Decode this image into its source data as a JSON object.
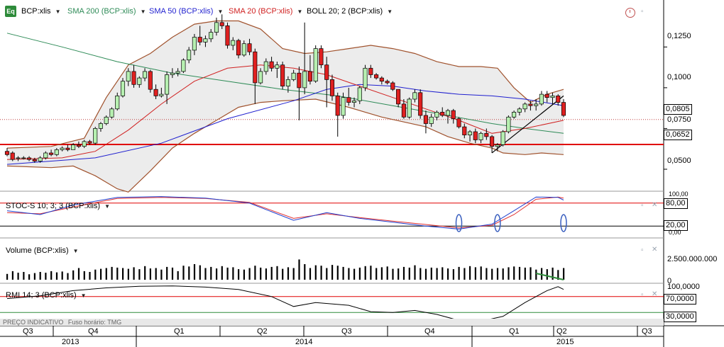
{
  "main_panel": {
    "symbol_label": "BCP:xlis",
    "icon_label": "Eq",
    "indicators": [
      {
        "label": "SMA 200 (BCP:xlis)",
        "color": "#2e8b57"
      },
      {
        "label": "SMA 50 (BCP:xlis)",
        "color": "#1f1fcf"
      },
      {
        "label": "SMA 20 (BCP:xlis)",
        "color": "#d02020"
      },
      {
        "label": "BOLL 20; 2 (BCP:xlis)",
        "color": "#000000"
      }
    ],
    "price_ticks": [
      "0,1250",
      "0,1000",
      "0,0750",
      "0,0500"
    ],
    "last_price": "0,0805",
    "support_price": "0,0652"
  },
  "stoch_panel": {
    "label": "STOC-S 10; 3; 3 (BCP:xlis)",
    "ticks": [
      "100,00",
      "0,00"
    ],
    "upper_box": "80,00",
    "lower_box": "20,00"
  },
  "volume_panel": {
    "label": "Volume (BCP:xlis)",
    "tick": "2.500.000.000",
    "zero": "0"
  },
  "rmi_panel": {
    "label": "RMI 14; 3 (BCP:xlis)",
    "top_tick": "100,0000",
    "upper_box": "70,0000",
    "lower_box": "30,0000"
  },
  "footer": {
    "price_note": "PREÇO INDICATIVO",
    "timezone": "Fuso horário: TMG"
  },
  "time_axis": {
    "quarters": [
      "Q3",
      "Q4",
      "Q1",
      "Q2",
      "Q3",
      "Q4",
      "Q1",
      "Q2",
      "Q3"
    ],
    "years": [
      "2013",
      "2014",
      "2015"
    ]
  },
  "chart_data": {
    "type": "candlestick",
    "candles_ohlc": [
      [
        0.061,
        0.063,
        0.058,
        0.059
      ],
      [
        0.06,
        0.061,
        0.055,
        0.056
      ],
      [
        0.057,
        0.058,
        0.055,
        0.057
      ],
      [
        0.057,
        0.058,
        0.056,
        0.057
      ],
      [
        0.057,
        0.058,
        0.055,
        0.056
      ],
      [
        0.056,
        0.057,
        0.054,
        0.055
      ],
      [
        0.055,
        0.058,
        0.054,
        0.057
      ],
      [
        0.057,
        0.061,
        0.056,
        0.06
      ],
      [
        0.06,
        0.062,
        0.058,
        0.059
      ],
      [
        0.059,
        0.063,
        0.058,
        0.062
      ],
      [
        0.062,
        0.064,
        0.061,
        0.063
      ],
      [
        0.063,
        0.065,
        0.061,
        0.062
      ],
      [
        0.062,
        0.066,
        0.062,
        0.065
      ],
      [
        0.065,
        0.067,
        0.063,
        0.064
      ],
      [
        0.064,
        0.068,
        0.063,
        0.067
      ],
      [
        0.067,
        0.068,
        0.065,
        0.066
      ],
      [
        0.066,
        0.076,
        0.065,
        0.075
      ],
      [
        0.075,
        0.079,
        0.073,
        0.078
      ],
      [
        0.078,
        0.083,
        0.077,
        0.082
      ],
      [
        0.082,
        0.088,
        0.081,
        0.087
      ],
      [
        0.087,
        0.097,
        0.086,
        0.095
      ],
      [
        0.095,
        0.106,
        0.094,
        0.104
      ],
      [
        0.104,
        0.112,
        0.101,
        0.11
      ],
      [
        0.11,
        0.114,
        0.1,
        0.102
      ],
      [
        0.102,
        0.107,
        0.1,
        0.106
      ],
      [
        0.106,
        0.112,
        0.104,
        0.11
      ],
      [
        0.11,
        0.111,
        0.097,
        0.099
      ],
      [
        0.099,
        0.102,
        0.093,
        0.095
      ],
      [
        0.095,
        0.1,
        0.094,
        0.096
      ],
      [
        0.096,
        0.11,
        0.09,
        0.108
      ],
      [
        0.108,
        0.112,
        0.106,
        0.109
      ],
      [
        0.109,
        0.112,
        0.107,
        0.11
      ],
      [
        0.11,
        0.118,
        0.109,
        0.117
      ],
      [
        0.117,
        0.125,
        0.115,
        0.123
      ],
      [
        0.123,
        0.133,
        0.12,
        0.131
      ],
      [
        0.131,
        0.138,
        0.126,
        0.128
      ],
      [
        0.128,
        0.132,
        0.125,
        0.13
      ],
      [
        0.13,
        0.136,
        0.128,
        0.134
      ],
      [
        0.134,
        0.143,
        0.132,
        0.14
      ],
      [
        0.14,
        0.145,
        0.136,
        0.138
      ],
      [
        0.138,
        0.14,
        0.124,
        0.126
      ],
      [
        0.126,
        0.131,
        0.123,
        0.129
      ],
      [
        0.129,
        0.13,
        0.118,
        0.12
      ],
      [
        0.12,
        0.129,
        0.119,
        0.127
      ],
      [
        0.127,
        0.13,
        0.12,
        0.122
      ],
      [
        0.122,
        0.124,
        0.09,
        0.103
      ],
      [
        0.103,
        0.112,
        0.102,
        0.11
      ],
      [
        0.11,
        0.118,
        0.108,
        0.116
      ],
      [
        0.116,
        0.119,
        0.11,
        0.112
      ],
      [
        0.112,
        0.116,
        0.106,
        0.114
      ],
      [
        0.114,
        0.116,
        0.099,
        0.101
      ],
      [
        0.101,
        0.107,
        0.097,
        0.105
      ],
      [
        0.105,
        0.111,
        0.104,
        0.109
      ],
      [
        0.109,
        0.113,
        0.08,
        0.1
      ],
      [
        0.1,
        0.14,
        0.096,
        0.11
      ],
      [
        0.11,
        0.12,
        0.102,
        0.104
      ],
      [
        0.104,
        0.126,
        0.103,
        0.124
      ],
      [
        0.124,
        0.126,
        0.112,
        0.114
      ],
      [
        0.114,
        0.119,
        0.088,
        0.105
      ],
      [
        0.105,
        0.108,
        0.092,
        0.095
      ],
      [
        0.095,
        0.097,
        0.07,
        0.083
      ],
      [
        0.083,
        0.097,
        0.081,
        0.094
      ],
      [
        0.094,
        0.1,
        0.089,
        0.091
      ],
      [
        0.091,
        0.094,
        0.088,
        0.092
      ],
      [
        0.092,
        0.101,
        0.09,
        0.1
      ],
      [
        0.1,
        0.114,
        0.098,
        0.112
      ],
      [
        0.112,
        0.114,
        0.106,
        0.108
      ],
      [
        0.108,
        0.109,
        0.105,
        0.106
      ],
      [
        0.106,
        0.107,
        0.102,
        0.104
      ],
      [
        0.104,
        0.105,
        0.102,
        0.103
      ],
      [
        0.103,
        0.104,
        0.098,
        0.099
      ],
      [
        0.099,
        0.099,
        0.088,
        0.09
      ],
      [
        0.09,
        0.093,
        0.081,
        0.082
      ],
      [
        0.082,
        0.094,
        0.081,
        0.093
      ],
      [
        0.093,
        0.099,
        0.091,
        0.097
      ],
      [
        0.097,
        0.099,
        0.081,
        0.083
      ],
      [
        0.083,
        0.086,
        0.072,
        0.078
      ],
      [
        0.078,
        0.084,
        0.076,
        0.082
      ],
      [
        0.082,
        0.086,
        0.08,
        0.085
      ],
      [
        0.085,
        0.088,
        0.082,
        0.083
      ],
      [
        0.083,
        0.087,
        0.078,
        0.086
      ],
      [
        0.086,
        0.087,
        0.078,
        0.081
      ],
      [
        0.081,
        0.082,
        0.075,
        0.076
      ],
      [
        0.076,
        0.078,
        0.069,
        0.071
      ],
      [
        0.071,
        0.074,
        0.067,
        0.073
      ],
      [
        0.073,
        0.075,
        0.066,
        0.068
      ],
      [
        0.068,
        0.073,
        0.066,
        0.072
      ],
      [
        0.072,
        0.075,
        0.068,
        0.07
      ],
      [
        0.07,
        0.071,
        0.06,
        0.064
      ],
      [
        0.064,
        0.066,
        0.061,
        0.065
      ],
      [
        0.065,
        0.074,
        0.064,
        0.073
      ],
      [
        0.073,
        0.083,
        0.072,
        0.082
      ],
      [
        0.082,
        0.086,
        0.081,
        0.085
      ],
      [
        0.085,
        0.088,
        0.083,
        0.087
      ],
      [
        0.087,
        0.091,
        0.085,
        0.09
      ],
      [
        0.09,
        0.092,
        0.086,
        0.089
      ],
      [
        0.089,
        0.093,
        0.086,
        0.09
      ],
      [
        0.09,
        0.098,
        0.089,
        0.096
      ],
      [
        0.096,
        0.098,
        0.091,
        0.094
      ],
      [
        0.094,
        0.097,
        0.09,
        0.095
      ],
      [
        0.095,
        0.096,
        0.089,
        0.091
      ],
      [
        0.091,
        0.093,
        0.082,
        0.083
      ]
    ],
    "sma20": [
      [
        0,
        0.056
      ],
      [
        10,
        0.057
      ],
      [
        16,
        0.061
      ],
      [
        22,
        0.074
      ],
      [
        28,
        0.09
      ],
      [
        34,
        0.104
      ],
      [
        40,
        0.112
      ],
      [
        46,
        0.114
      ],
      [
        52,
        0.112
      ],
      [
        58,
        0.108
      ],
      [
        64,
        0.101
      ],
      [
        70,
        0.094
      ],
      [
        76,
        0.087
      ],
      [
        82,
        0.08
      ],
      [
        88,
        0.072
      ],
      [
        94,
        0.075
      ],
      [
        101,
        0.08
      ]
    ],
    "sma50": [
      [
        0,
        0.053
      ],
      [
        16,
        0.057
      ],
      [
        28,
        0.066
      ],
      [
        40,
        0.081
      ],
      [
        52,
        0.092
      ],
      [
        58,
        0.099
      ],
      [
        64,
        0.102
      ],
      [
        70,
        0.101
      ],
      [
        76,
        0.098
      ],
      [
        82,
        0.096
      ],
      [
        88,
        0.095
      ],
      [
        94,
        0.093
      ],
      [
        101,
        0.089
      ]
    ],
    "sma200": [
      [
        0,
        0.1335
      ],
      [
        10,
        0.125
      ],
      [
        20,
        0.116
      ],
      [
        30,
        0.109
      ],
      [
        40,
        0.104
      ],
      [
        50,
        0.099
      ],
      [
        60,
        0.095
      ],
      [
        70,
        0.089
      ],
      [
        80,
        0.083
      ],
      [
        88,
        0.078
      ],
      [
        94,
        0.075
      ],
      [
        101,
        0.072
      ]
    ],
    "boll_upper": [
      [
        0,
        0.063
      ],
      [
        8,
        0.064
      ],
      [
        14,
        0.069
      ],
      [
        18,
        0.094
      ],
      [
        22,
        0.114
      ],
      [
        26,
        0.121
      ],
      [
        30,
        0.131
      ],
      [
        34,
        0.139
      ],
      [
        38,
        0.141
      ],
      [
        42,
        0.141
      ],
      [
        46,
        0.136
      ],
      [
        50,
        0.124
      ],
      [
        54,
        0.121
      ],
      [
        58,
        0.122
      ],
      [
        62,
        0.124
      ],
      [
        66,
        0.126
      ],
      [
        70,
        0.124
      ],
      [
        74,
        0.121
      ],
      [
        78,
        0.116
      ],
      [
        82,
        0.113
      ],
      [
        86,
        0.113
      ],
      [
        89,
        0.112
      ],
      [
        92,
        0.1
      ],
      [
        95,
        0.091
      ],
      [
        98,
        0.096
      ],
      [
        101,
        0.099
      ]
    ],
    "boll_lower": [
      [
        0,
        0.052
      ],
      [
        8,
        0.051
      ],
      [
        12,
        0.052
      ],
      [
        16,
        0.046
      ],
      [
        20,
        0.038
      ],
      [
        22,
        0.036
      ],
      [
        26,
        0.049
      ],
      [
        30,
        0.063
      ],
      [
        34,
        0.072
      ],
      [
        38,
        0.08
      ],
      [
        42,
        0.088
      ],
      [
        46,
        0.091
      ],
      [
        50,
        0.092
      ],
      [
        56,
        0.093
      ],
      [
        62,
        0.088
      ],
      [
        68,
        0.082
      ],
      [
        72,
        0.079
      ],
      [
        76,
        0.076
      ],
      [
        80,
        0.07
      ],
      [
        84,
        0.066
      ],
      [
        88,
        0.063
      ],
      [
        90,
        0.06
      ],
      [
        94,
        0.059
      ],
      [
        97,
        0.06
      ],
      [
        101,
        0.059
      ]
    ],
    "support_level": 0.0652,
    "last_level": 0.0805,
    "trendline": [
      [
        88,
        0.06
      ],
      [
        101,
        0.095
      ]
    ],
    "price_axis_range": [
      0.04,
      0.146
    ],
    "volume_heights": [
      0.15,
      0.22,
      0.18,
      0.2,
      0.14,
      0.17,
      0.2,
      0.18,
      0.22,
      0.19,
      0.21,
      0.17,
      0.24,
      0.3,
      0.22,
      0.2,
      0.26,
      0.28,
      0.3,
      0.33,
      0.31,
      0.3,
      0.28,
      0.32,
      0.27,
      0.35,
      0.29,
      0.3,
      0.26,
      0.33,
      0.31,
      0.22,
      0.36,
      0.34,
      0.4,
      0.37,
      0.3,
      0.33,
      0.29,
      0.35,
      0.31,
      0.32,
      0.27,
      0.26,
      0.3,
      0.36,
      0.31,
      0.29,
      0.33,
      0.35,
      0.28,
      0.32,
      0.3,
      0.52,
      0.4,
      0.3,
      0.37,
      0.36,
      0.3,
      0.38,
      0.36,
      0.33,
      0.3,
      0.28,
      0.31,
      0.35,
      0.36,
      0.3,
      0.32,
      0.34,
      0.28,
      0.29,
      0.33,
      0.31,
      0.37,
      0.3,
      0.28,
      0.31,
      0.3,
      0.32,
      0.29,
      0.27,
      0.33,
      0.3,
      0.35,
      0.32,
      0.34,
      0.3,
      0.28,
      0.3,
      0.29,
      0.32,
      0.34,
      0.33,
      0.31,
      0.32,
      0.26,
      0.3,
      0.27,
      0.31,
      0.25,
      0.3
    ],
    "stochastic_k": [
      [
        0,
        60
      ],
      [
        6,
        50
      ],
      [
        12,
        75
      ],
      [
        20,
        95
      ],
      [
        28,
        97
      ],
      [
        36,
        93
      ],
      [
        44,
        80
      ],
      [
        52,
        35
      ],
      [
        58,
        55
      ],
      [
        64,
        40
      ],
      [
        70,
        30
      ],
      [
        76,
        20
      ],
      [
        82,
        12
      ],
      [
        88,
        25
      ],
      [
        92,
        60
      ],
      [
        96,
        96
      ],
      [
        100,
        95
      ],
      [
        101,
        88
      ]
    ],
    "stochastic_d": [
      [
        0,
        55
      ],
      [
        6,
        52
      ],
      [
        12,
        70
      ],
      [
        20,
        92
      ],
      [
        28,
        95
      ],
      [
        36,
        92
      ],
      [
        44,
        82
      ],
      [
        52,
        40
      ],
      [
        58,
        52
      ],
      [
        64,
        42
      ],
      [
        70,
        33
      ],
      [
        76,
        24
      ],
      [
        82,
        15
      ],
      [
        88,
        22
      ],
      [
        92,
        50
      ],
      [
        96,
        90
      ],
      [
        100,
        96
      ],
      [
        101,
        93
      ]
    ],
    "rmi": [
      [
        0,
        65
      ],
      [
        6,
        72
      ],
      [
        12,
        85
      ],
      [
        18,
        92
      ],
      [
        24,
        96
      ],
      [
        30,
        97
      ],
      [
        36,
        94
      ],
      [
        42,
        88
      ],
      [
        48,
        70
      ],
      [
        52,
        45
      ],
      [
        56,
        55
      ],
      [
        62,
        48
      ],
      [
        66,
        32
      ],
      [
        70,
        30
      ],
      [
        74,
        35
      ],
      [
        78,
        25
      ],
      [
        82,
        10
      ],
      [
        86,
        8
      ],
      [
        90,
        20
      ],
      [
        94,
        55
      ],
      [
        98,
        85
      ],
      [
        100,
        95
      ],
      [
        101,
        88
      ]
    ]
  }
}
